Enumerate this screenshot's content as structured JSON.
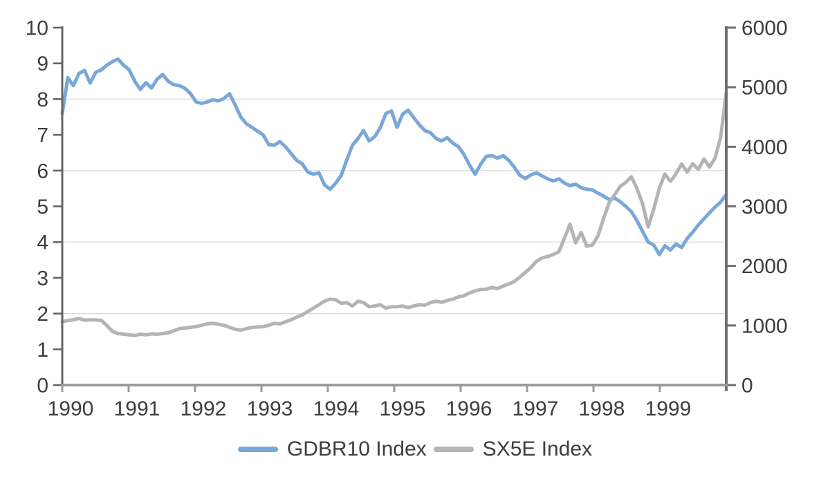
{
  "chart_data": {
    "type": "line",
    "title": "",
    "x_unit": "monthly",
    "x_start_year": 1990,
    "x_axis": {
      "tick_labels": [
        "1990",
        "1991",
        "1992",
        "1993",
        "1994",
        "1995",
        "1996",
        "1997",
        "1998",
        "1999"
      ]
    },
    "left_axis": {
      "min": 0,
      "max": 10,
      "tick_values": [
        0,
        1,
        2,
        3,
        4,
        5,
        6,
        7,
        8,
        9,
        10
      ],
      "tick_labels": [
        "0",
        "1",
        "2",
        "3",
        "4",
        "5",
        "6",
        "7",
        "8",
        "9",
        "10"
      ]
    },
    "right_axis": {
      "min": 0,
      "max": 6000,
      "tick_values": [
        0,
        1000,
        2000,
        3000,
        4000,
        5000,
        6000
      ],
      "tick_labels": [
        "0",
        "1000",
        "2000",
        "3000",
        "4000",
        "5000",
        "6000"
      ]
    },
    "gridlines_at_left_values": [
      2,
      4,
      6,
      8
    ],
    "grid": "horizontal-only",
    "legend_position": "bottom-center",
    "series": [
      {
        "name": "GDBR10 Index",
        "axis": "left",
        "color": "#7aa7d9",
        "values": [
          7.6,
          8.6,
          8.38,
          8.72,
          8.8,
          8.45,
          8.75,
          8.82,
          8.95,
          9.05,
          9.12,
          8.95,
          8.82,
          8.5,
          8.27,
          8.46,
          8.31,
          8.56,
          8.69,
          8.5,
          8.4,
          8.38,
          8.3,
          8.15,
          7.92,
          7.88,
          7.92,
          7.98,
          7.95,
          8.02,
          8.15,
          7.83,
          7.5,
          7.31,
          7.21,
          7.1,
          7.0,
          6.73,
          6.71,
          6.81,
          6.67,
          6.48,
          6.29,
          6.19,
          5.96,
          5.9,
          5.94,
          5.6,
          5.48,
          5.65,
          5.87,
          6.3,
          6.71,
          6.9,
          7.12,
          6.83,
          6.95,
          7.2,
          7.6,
          7.67,
          7.21,
          7.58,
          7.69,
          7.48,
          7.28,
          7.12,
          7.06,
          6.9,
          6.83,
          6.92,
          6.77,
          6.67,
          6.45,
          6.15,
          5.9,
          6.18,
          6.4,
          6.42,
          6.35,
          6.42,
          6.29,
          6.1,
          5.87,
          5.78,
          5.88,
          5.94,
          5.85,
          5.77,
          5.71,
          5.77,
          5.65,
          5.58,
          5.62,
          5.52,
          5.48,
          5.46,
          5.37,
          5.29,
          5.19,
          5.23,
          5.13,
          5.0,
          4.85,
          4.6,
          4.3,
          4.0,
          3.92,
          3.65,
          3.9,
          3.78,
          3.95,
          3.85,
          4.1,
          4.28,
          4.48,
          4.65,
          4.82,
          4.98,
          5.12,
          5.33
        ]
      },
      {
        "name": "SX5E Index",
        "axis": "right",
        "color": "#b4b4b5",
        "values": [
          1062,
          1084,
          1096,
          1119,
          1090,
          1096,
          1092,
          1085,
          1000,
          900,
          865,
          854,
          842,
          831,
          854,
          842,
          860,
          854,
          865,
          877,
          911,
          946,
          958,
          969,
          981,
          1004,
          1027,
          1038,
          1020,
          1004,
          969,
          935,
          923,
          946,
          969,
          975,
          981,
          1004,
          1038,
          1027,
          1062,
          1096,
          1142,
          1177,
          1235,
          1292,
          1350,
          1408,
          1442,
          1431,
          1373,
          1385,
          1327,
          1408,
          1385,
          1315,
          1327,
          1350,
          1292,
          1315,
          1315,
          1327,
          1300,
          1327,
          1350,
          1340,
          1385,
          1408,
          1390,
          1420,
          1442,
          1480,
          1500,
          1546,
          1581,
          1604,
          1610,
          1638,
          1620,
          1661,
          1696,
          1740,
          1811,
          1890,
          1975,
          2077,
          2135,
          2158,
          2192,
          2238,
          2469,
          2700,
          2388,
          2562,
          2331,
          2350,
          2504,
          2792,
          3058,
          3196,
          3334,
          3404,
          3496,
          3300,
          3046,
          2654,
          2950,
          3300,
          3543,
          3420,
          3548,
          3713,
          3575,
          3715,
          3620,
          3796,
          3660,
          3810,
          4161,
          4904
        ]
      }
    ]
  },
  "colors": {
    "background": "#ffffff",
    "gridline": "#d8d8d8",
    "left_axis": "#646568",
    "right_axis": "#6e6f72",
    "bottom_axis": "#9b9c9e",
    "tick_label": "#3c3d3f",
    "gdbr10_line": "#7aa7d9",
    "sx5e_line": "#b4b4b5"
  }
}
